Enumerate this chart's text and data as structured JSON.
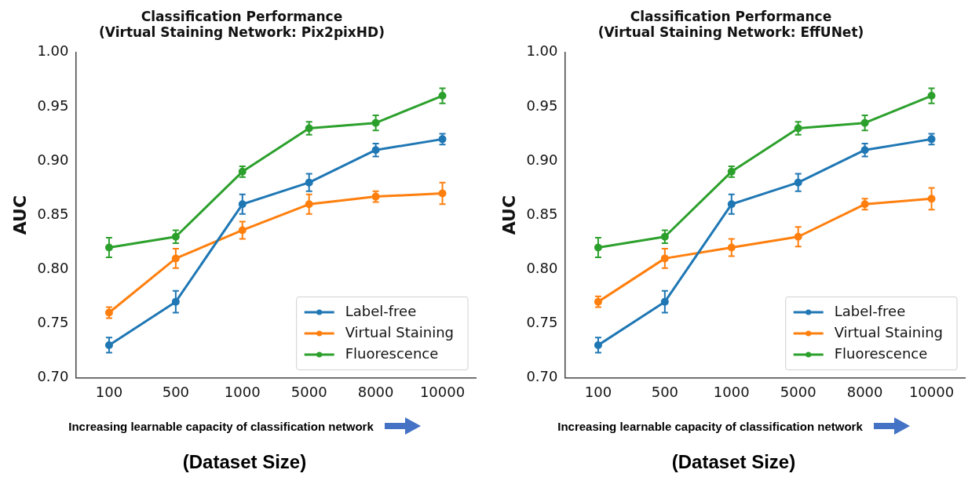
{
  "chart_data": [
    {
      "type": "line",
      "title": "Classification Performance",
      "subtitle": "(Virtual Staining Network: Pix2pixHD)",
      "xlabel": "Increasing learnable capacity of classification network",
      "ylabel": "AUC",
      "annotations": [
        "(Dataset Size)"
      ],
      "categories": [
        "100",
        "500",
        "1000",
        "5000",
        "8000",
        "10000"
      ],
      "ylim": [
        0.7,
        1.0
      ],
      "yticks": [
        {
          "value": 0.7,
          "label": "0.70"
        },
        {
          "value": 0.75,
          "label": "0.75"
        },
        {
          "value": 0.8,
          "label": "0.80"
        },
        {
          "value": 0.85,
          "label": "0.85"
        },
        {
          "value": 0.9,
          "label": "0.90"
        },
        {
          "value": 0.95,
          "label": "0.95"
        },
        {
          "value": 1.0,
          "label": "1.00"
        }
      ],
      "grid": false,
      "legend": "bottom right",
      "marker": "circle",
      "line_style": "solid",
      "series": [
        {
          "name": "Label-free",
          "color": "#1f77b4",
          "values": [
            0.73,
            0.77,
            0.86,
            0.88,
            0.91,
            0.92
          ],
          "errors": [
            0.007,
            0.01,
            0.009,
            0.008,
            0.006,
            0.005
          ]
        },
        {
          "name": "Virtual Staining",
          "color": "#ff7f0e",
          "values": [
            0.76,
            0.81,
            0.836,
            0.86,
            0.867,
            0.87
          ],
          "errors": [
            0.005,
            0.009,
            0.008,
            0.009,
            0.005,
            0.01
          ]
        },
        {
          "name": "Fluorescence",
          "color": "#2ca02c",
          "values": [
            0.82,
            0.83,
            0.89,
            0.93,
            0.935,
            0.96
          ],
          "errors": [
            0.009,
            0.006,
            0.005,
            0.006,
            0.007,
            0.007
          ]
        }
      ]
    },
    {
      "type": "line",
      "title": "Classification Performance",
      "subtitle": "(Virtual Staining Network: EffUNet)",
      "xlabel": "Increasing learnable capacity of classification network",
      "ylabel": "AUC",
      "annotations": [
        "(Dataset Size)"
      ],
      "categories": [
        "100",
        "500",
        "1000",
        "5000",
        "8000",
        "10000"
      ],
      "ylim": [
        0.7,
        1.0
      ],
      "yticks": [
        {
          "value": 0.7,
          "label": "0.70"
        },
        {
          "value": 0.75,
          "label": "0.75"
        },
        {
          "value": 0.8,
          "label": "0.80"
        },
        {
          "value": 0.85,
          "label": "0.85"
        },
        {
          "value": 0.9,
          "label": "0.90"
        },
        {
          "value": 0.95,
          "label": "0.95"
        },
        {
          "value": 1.0,
          "label": "1.00"
        }
      ],
      "grid": false,
      "legend": "bottom right",
      "marker": "circle",
      "line_style": "solid",
      "series": [
        {
          "name": "Label-free",
          "color": "#1f77b4",
          "values": [
            0.73,
            0.77,
            0.86,
            0.88,
            0.91,
            0.92
          ],
          "errors": [
            0.007,
            0.01,
            0.009,
            0.008,
            0.006,
            0.005
          ]
        },
        {
          "name": "Virtual Staining",
          "color": "#ff7f0e",
          "values": [
            0.77,
            0.81,
            0.82,
            0.83,
            0.86,
            0.865
          ],
          "errors": [
            0.005,
            0.009,
            0.008,
            0.009,
            0.005,
            0.01
          ]
        },
        {
          "name": "Fluorescence",
          "color": "#2ca02c",
          "values": [
            0.82,
            0.83,
            0.89,
            0.93,
            0.935,
            0.96
          ],
          "errors": [
            0.009,
            0.006,
            0.005,
            0.006,
            0.007,
            0.007
          ]
        }
      ]
    }
  ]
}
